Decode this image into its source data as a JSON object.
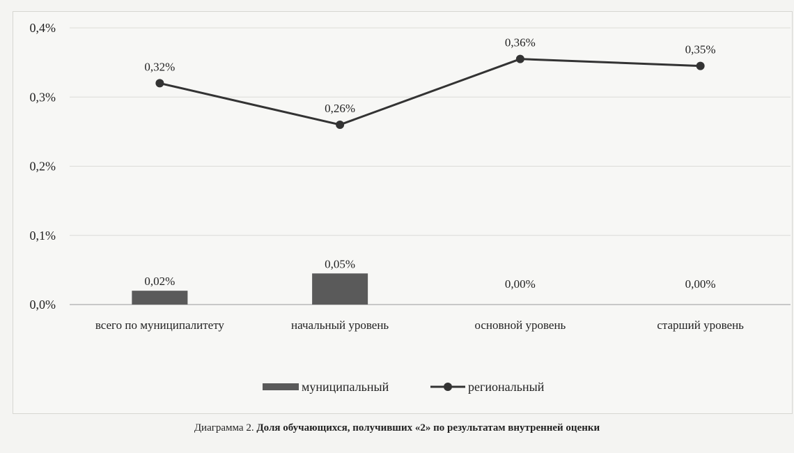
{
  "chart_data": {
    "type": "bar+line",
    "categories": [
      "всего по муниципалитету",
      "начальный уровень",
      "основной уровень",
      "старший уровень"
    ],
    "series": [
      {
        "name": "муниципальный",
        "type": "bar",
        "values": [
          0.0002,
          0.00045,
          0.0,
          0.0
        ],
        "labels": [
          "0,02%",
          "0,05%",
          "0,00%",
          "0,00%"
        ]
      },
      {
        "name": "региональный",
        "type": "line",
        "values": [
          0.0032,
          0.0026,
          0.00355,
          0.00345
        ],
        "labels": [
          "0,32%",
          "0,26%",
          "0,36%",
          "0,35%"
        ]
      }
    ],
    "ylim": [
      0,
      0.004
    ],
    "yticks": [
      0,
      0.001,
      0.002,
      0.003,
      0.004
    ],
    "ytick_labels": [
      "0,0%",
      "0,1%",
      "0,2%",
      "0,3%",
      "0,4%"
    ],
    "grid": true,
    "legend": "bottom-center",
    "colors": {
      "bar": "#5a5a5a",
      "line": "#333333"
    }
  },
  "caption": {
    "prefix": "Диаграмма 2.",
    "text": "Доля обучающихся, получивших «2» по результатам внутренней оценки"
  }
}
